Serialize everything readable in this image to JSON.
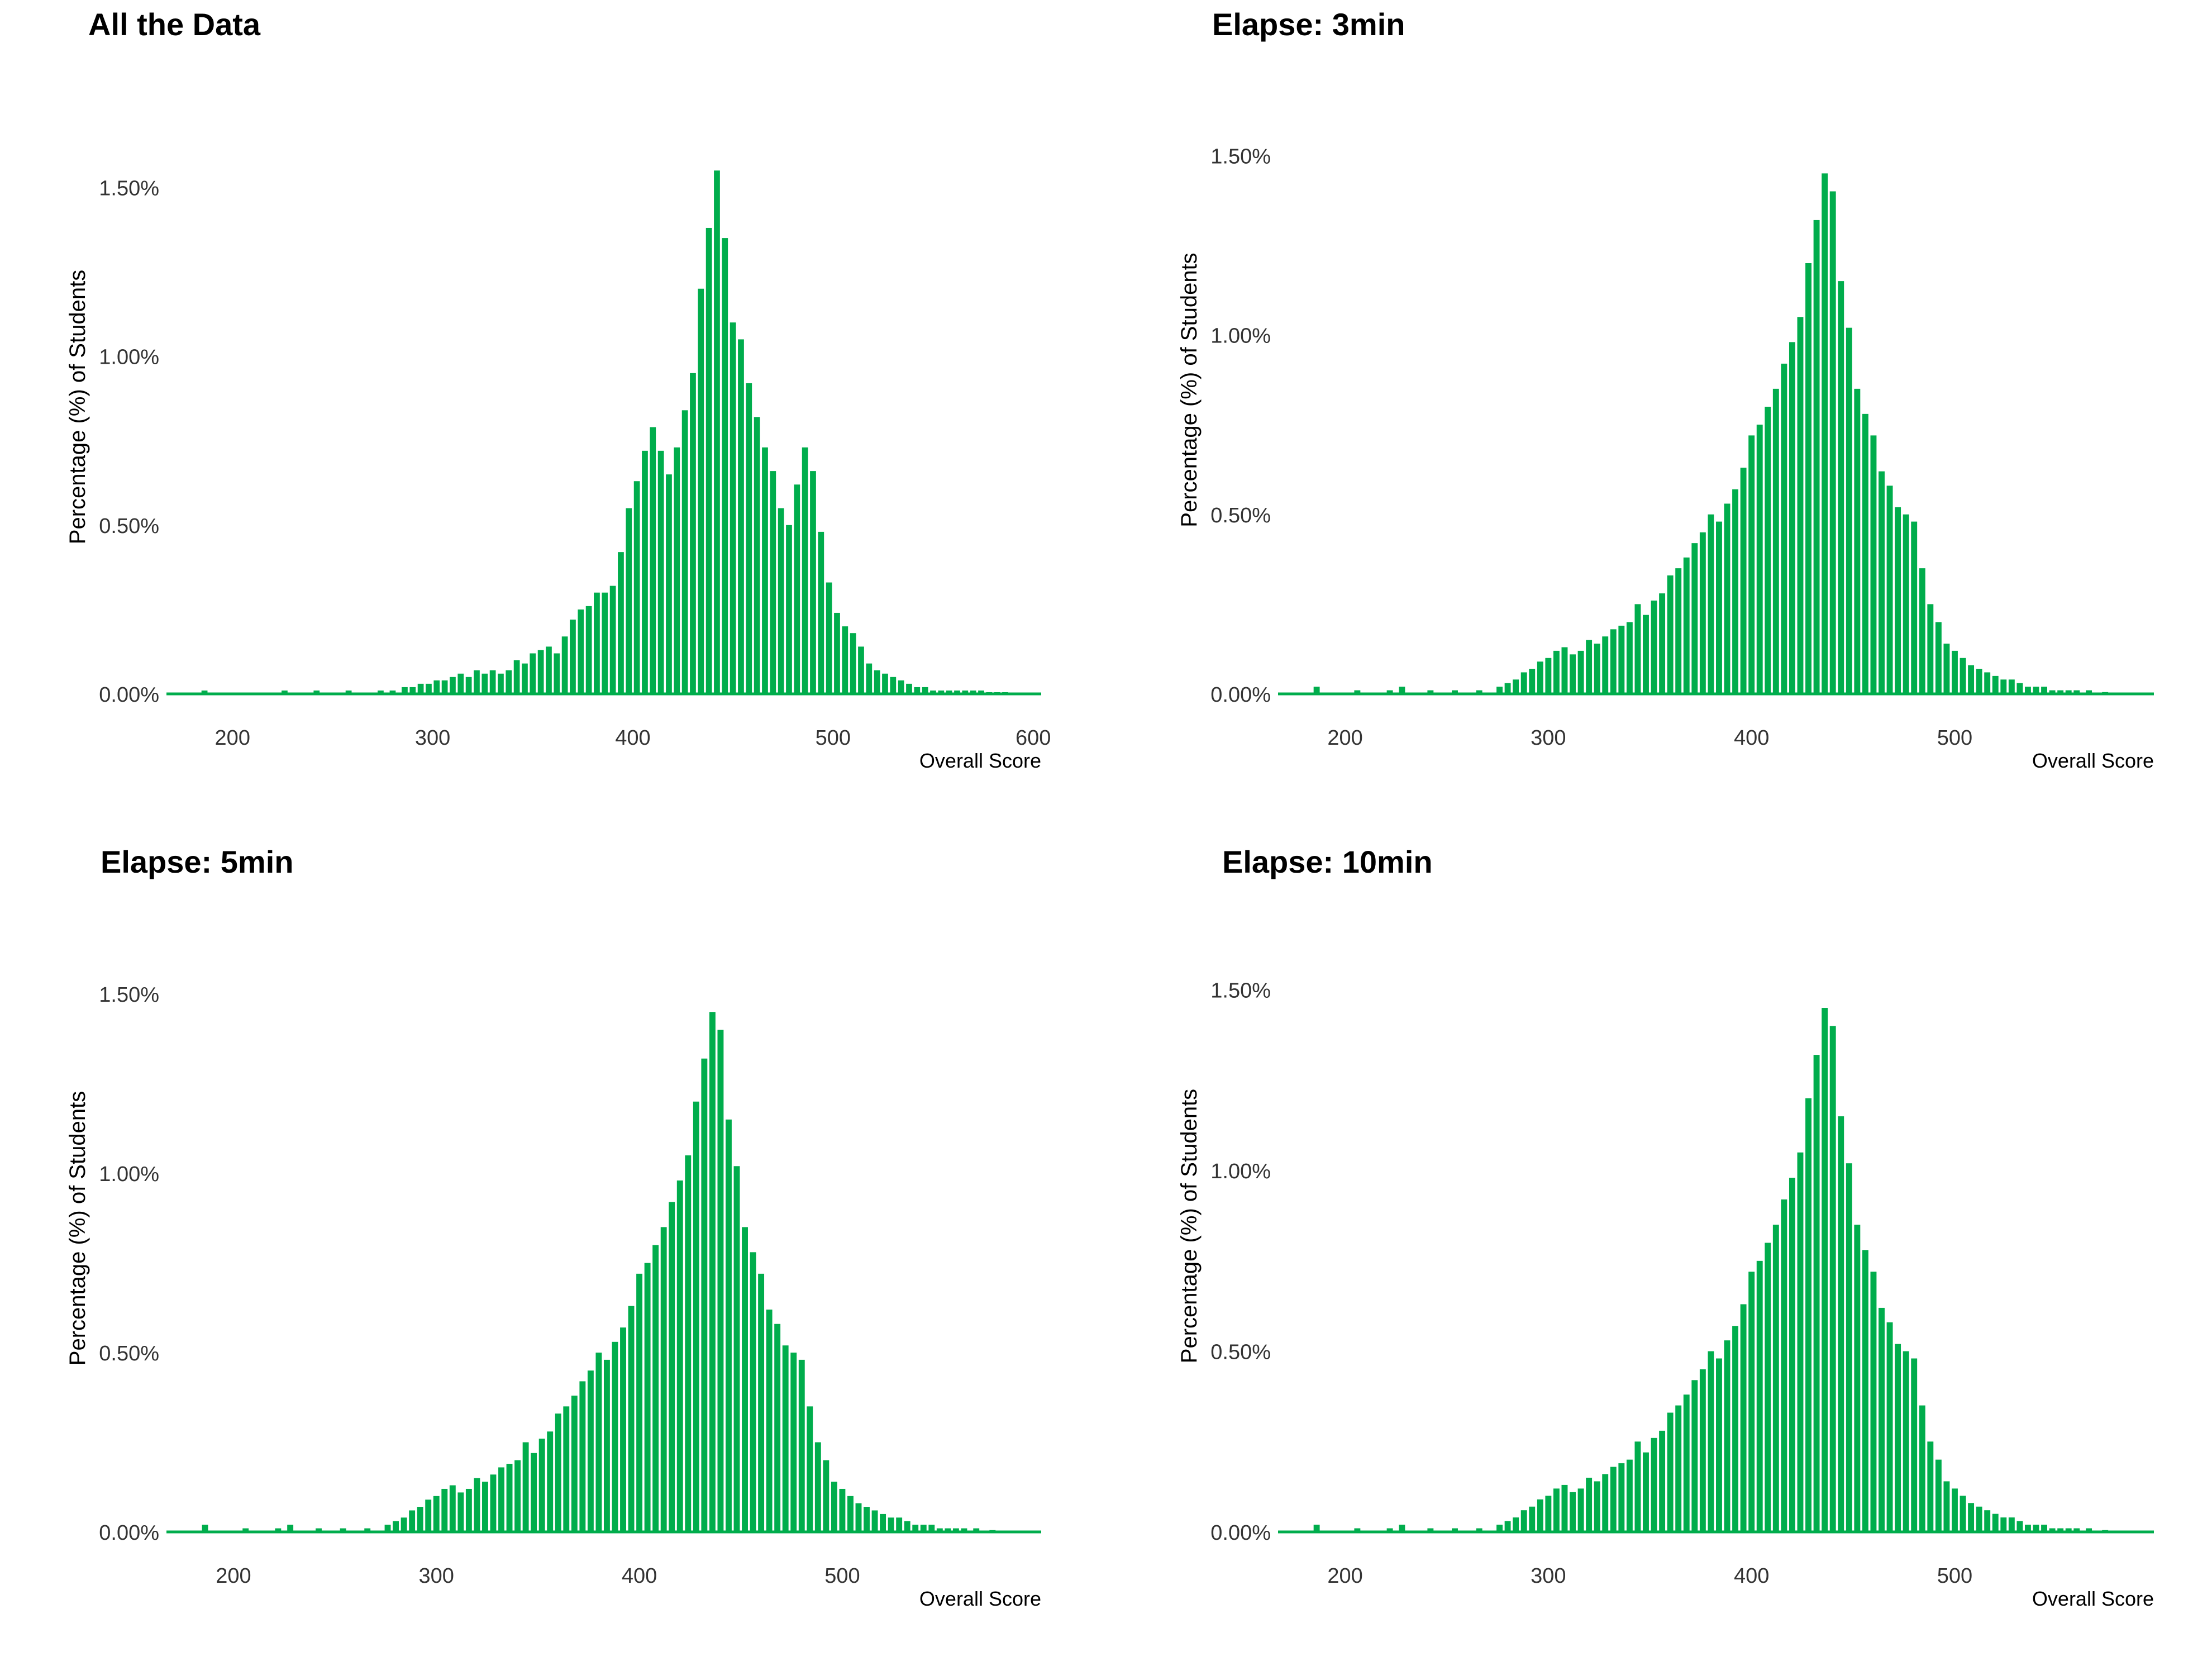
{
  "figure": {
    "bar_color": "#00AD4C",
    "text_color": "#000000",
    "tick_color": "#333333"
  },
  "chart_data": [
    {
      "type": "bar",
      "title": "All the Data",
      "xlabel": "Overall Score",
      "ylabel": "Percentage (%) of Students",
      "xlim": [
        167,
        604
      ],
      "ylim": [
        0,
        1.6
      ],
      "x_ticks": [
        200,
        300,
        400,
        500,
        600
      ],
      "y_ticks": [
        0,
        0.5,
        1.0,
        1.5
      ],
      "y_tick_labels": [
        "0.00%",
        "0.50%",
        "1.00%",
        "1.50%"
      ],
      "grid": false,
      "legend": "none",
      "bin_width": 2,
      "x": [
        186,
        226,
        242,
        258,
        274,
        280,
        286,
        290,
        294,
        298,
        302,
        306,
        310,
        314,
        318,
        322,
        326,
        330,
        334,
        338,
        342,
        346,
        350,
        354,
        358,
        362,
        366,
        370,
        374,
        378,
        382,
        386,
        390,
        394,
        398,
        402,
        406,
        410,
        414,
        418,
        422,
        426,
        430,
        434,
        438,
        442,
        446,
        450,
        454,
        458,
        462,
        466,
        470,
        474,
        478,
        482,
        486,
        490,
        494,
        498,
        502,
        506,
        510,
        514,
        518,
        522,
        526,
        530,
        534,
        538,
        542,
        546,
        550,
        554,
        558,
        562,
        566,
        570,
        574,
        578,
        582,
        586
      ],
      "values": [
        0.01,
        0.01,
        0.01,
        0.01,
        0.01,
        0.01,
        0.02,
        0.02,
        0.03,
        0.03,
        0.04,
        0.04,
        0.05,
        0.06,
        0.05,
        0.07,
        0.06,
        0.07,
        0.06,
        0.07,
        0.1,
        0.09,
        0.12,
        0.13,
        0.14,
        0.12,
        0.17,
        0.22,
        0.25,
        0.26,
        0.3,
        0.3,
        0.32,
        0.42,
        0.55,
        0.63,
        0.72,
        0.79,
        0.72,
        0.65,
        0.73,
        0.84,
        0.95,
        1.2,
        1.38,
        1.55,
        1.35,
        1.1,
        1.05,
        0.92,
        0.82,
        0.73,
        0.66,
        0.55,
        0.5,
        0.62,
        0.73,
        0.66,
        0.48,
        0.33,
        0.24,
        0.2,
        0.18,
        0.14,
        0.09,
        0.07,
        0.06,
        0.05,
        0.04,
        0.03,
        0.02,
        0.02,
        0.01,
        0.01,
        0.01,
        0.01,
        0.01,
        0.01,
        0.01,
        0.005,
        0.005,
        0.005
      ]
    },
    {
      "type": "bar",
      "title": "Elapse: 3min",
      "xlabel": "Overall Score",
      "ylabel": "Percentage (%) of Students",
      "xlim": [
        167,
        598
      ],
      "ylim": [
        0,
        1.6
      ],
      "x_ticks": [
        200,
        300,
        400,
        500
      ],
      "y_ticks": [
        0,
        0.5,
        1.0,
        1.5
      ],
      "y_tick_labels": [
        "0.00%",
        "0.50%",
        "1.00%",
        "1.50%"
      ],
      "grid": false,
      "legend": "none",
      "bin_width": 2,
      "x": [
        186,
        206,
        222,
        228,
        242,
        254,
        266,
        276,
        280,
        284,
        288,
        292,
        296,
        300,
        304,
        308,
        312,
        316,
        320,
        324,
        328,
        332,
        336,
        340,
        344,
        348,
        352,
        356,
        360,
        364,
        368,
        372,
        376,
        380,
        384,
        388,
        392,
        396,
        400,
        404,
        408,
        412,
        416,
        420,
        424,
        428,
        432,
        436,
        440,
        444,
        448,
        452,
        456,
        460,
        464,
        468,
        472,
        476,
        480,
        484,
        488,
        492,
        496,
        500,
        504,
        508,
        512,
        516,
        520,
        524,
        528,
        532,
        536,
        540,
        544,
        548,
        552,
        556,
        560,
        566,
        574
      ],
      "values": [
        0.02,
        0.01,
        0.01,
        0.02,
        0.01,
        0.01,
        0.01,
        0.02,
        0.03,
        0.04,
        0.06,
        0.07,
        0.09,
        0.1,
        0.12,
        0.13,
        0.11,
        0.12,
        0.15,
        0.14,
        0.16,
        0.18,
        0.19,
        0.2,
        0.25,
        0.22,
        0.26,
        0.28,
        0.33,
        0.35,
        0.38,
        0.42,
        0.45,
        0.5,
        0.48,
        0.53,
        0.57,
        0.63,
        0.72,
        0.75,
        0.8,
        0.85,
        0.92,
        0.98,
        1.05,
        1.2,
        1.32,
        1.45,
        1.4,
        1.15,
        1.02,
        0.85,
        0.78,
        0.72,
        0.62,
        0.58,
        0.52,
        0.5,
        0.48,
        0.35,
        0.25,
        0.2,
        0.14,
        0.12,
        0.1,
        0.08,
        0.07,
        0.06,
        0.05,
        0.04,
        0.04,
        0.03,
        0.02,
        0.02,
        0.02,
        0.01,
        0.01,
        0.01,
        0.01,
        0.01,
        0.005
      ]
    },
    {
      "type": "bar",
      "title": "Elapse: 5min",
      "xlabel": "Overall Score",
      "ylabel": "Percentage (%) of Students",
      "xlim": [
        167,
        598
      ],
      "ylim": [
        0,
        1.6
      ],
      "x_ticks": [
        200,
        300,
        400,
        500
      ],
      "y_ticks": [
        0,
        0.5,
        1.0,
        1.5
      ],
      "y_tick_labels": [
        "0.00%",
        "0.50%",
        "1.00%",
        "1.50%"
      ],
      "grid": false,
      "legend": "none",
      "bin_width": 2,
      "x": [
        186,
        206,
        222,
        228,
        242,
        254,
        266,
        276,
        280,
        284,
        288,
        292,
        296,
        300,
        304,
        308,
        312,
        316,
        320,
        324,
        328,
        332,
        336,
        340,
        344,
        348,
        352,
        356,
        360,
        364,
        368,
        372,
        376,
        380,
        384,
        388,
        392,
        396,
        400,
        404,
        408,
        412,
        416,
        420,
        424,
        428,
        432,
        436,
        440,
        444,
        448,
        452,
        456,
        460,
        464,
        468,
        472,
        476,
        480,
        484,
        488,
        492,
        496,
        500,
        504,
        508,
        512,
        516,
        520,
        524,
        528,
        532,
        536,
        540,
        544,
        548,
        552,
        556,
        560,
        566,
        574
      ],
      "values": [
        0.02,
        0.01,
        0.01,
        0.02,
        0.01,
        0.01,
        0.01,
        0.02,
        0.03,
        0.04,
        0.06,
        0.07,
        0.09,
        0.1,
        0.12,
        0.13,
        0.11,
        0.12,
        0.15,
        0.14,
        0.16,
        0.18,
        0.19,
        0.2,
        0.25,
        0.22,
        0.26,
        0.28,
        0.33,
        0.35,
        0.38,
        0.42,
        0.45,
        0.5,
        0.48,
        0.53,
        0.57,
        0.63,
        0.72,
        0.75,
        0.8,
        0.85,
        0.92,
        0.98,
        1.05,
        1.2,
        1.32,
        1.45,
        1.4,
        1.15,
        1.02,
        0.85,
        0.78,
        0.72,
        0.62,
        0.58,
        0.52,
        0.5,
        0.48,
        0.35,
        0.25,
        0.2,
        0.14,
        0.12,
        0.1,
        0.08,
        0.07,
        0.06,
        0.05,
        0.04,
        0.04,
        0.03,
        0.02,
        0.02,
        0.02,
        0.01,
        0.01,
        0.01,
        0.01,
        0.01,
        0.005
      ]
    },
    {
      "type": "bar",
      "title": "Elapse: 10min",
      "xlabel": "Overall Score",
      "ylabel": "Percentage (%) of Students",
      "xlim": [
        167,
        598
      ],
      "ylim": [
        0,
        1.6
      ],
      "x_ticks": [
        200,
        300,
        400,
        500
      ],
      "y_ticks": [
        0,
        0.5,
        1.0,
        1.5
      ],
      "y_tick_labels": [
        "0.00%",
        "0.50%",
        "1.00%",
        "1.50%"
      ],
      "grid": false,
      "legend": "none",
      "bin_width": 2,
      "x": [
        186,
        206,
        222,
        228,
        242,
        254,
        266,
        276,
        280,
        284,
        288,
        292,
        296,
        300,
        304,
        308,
        312,
        316,
        320,
        324,
        328,
        332,
        336,
        340,
        344,
        348,
        352,
        356,
        360,
        364,
        368,
        372,
        376,
        380,
        384,
        388,
        392,
        396,
        400,
        404,
        408,
        412,
        416,
        420,
        424,
        428,
        432,
        436,
        440,
        444,
        448,
        452,
        456,
        460,
        464,
        468,
        472,
        476,
        480,
        484,
        488,
        492,
        496,
        500,
        504,
        508,
        512,
        516,
        520,
        524,
        528,
        532,
        536,
        540,
        544,
        548,
        552,
        556,
        560,
        566,
        574
      ],
      "values": [
        0.02,
        0.01,
        0.01,
        0.02,
        0.01,
        0.01,
        0.01,
        0.02,
        0.03,
        0.04,
        0.06,
        0.07,
        0.09,
        0.1,
        0.12,
        0.13,
        0.11,
        0.12,
        0.15,
        0.14,
        0.16,
        0.18,
        0.19,
        0.2,
        0.25,
        0.22,
        0.26,
        0.28,
        0.33,
        0.35,
        0.38,
        0.42,
        0.45,
        0.5,
        0.48,
        0.53,
        0.57,
        0.63,
        0.72,
        0.75,
        0.8,
        0.85,
        0.92,
        0.98,
        1.05,
        1.2,
        1.32,
        1.45,
        1.4,
        1.15,
        1.02,
        0.85,
        0.78,
        0.72,
        0.62,
        0.58,
        0.52,
        0.5,
        0.48,
        0.35,
        0.25,
        0.2,
        0.14,
        0.12,
        0.1,
        0.08,
        0.07,
        0.06,
        0.05,
        0.04,
        0.04,
        0.03,
        0.02,
        0.02,
        0.02,
        0.01,
        0.01,
        0.01,
        0.01,
        0.01,
        0.005
      ]
    }
  ]
}
